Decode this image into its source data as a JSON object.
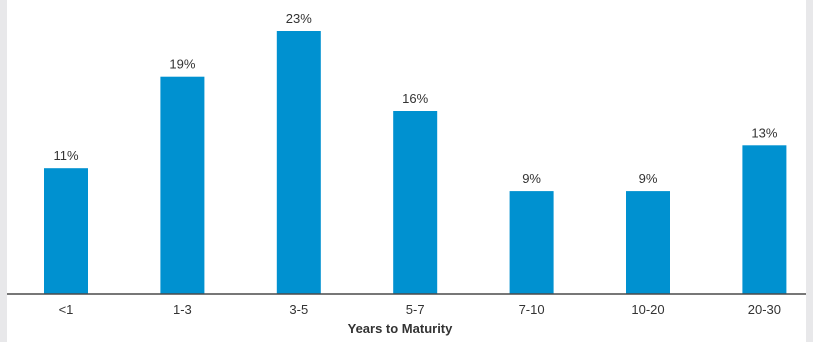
{
  "chart_data": {
    "type": "bar",
    "title": "",
    "xlabel": "Years to Maturity",
    "ylabel": "",
    "categories": [
      "<1",
      "1-3",
      "3-5",
      "5-7",
      "7-10",
      "10-20",
      "20-30"
    ],
    "values": [
      11,
      19,
      23,
      16,
      9,
      9,
      13
    ],
    "value_labels": [
      "11%",
      "19%",
      "23%",
      "16%",
      "9%",
      "9%",
      "13%"
    ],
    "ylim": [
      0,
      24
    ],
    "grid": false,
    "legend": "none",
    "bar_color": "#0091d0",
    "axis_color": "#4a4a4a",
    "background_color": "#ffffff",
    "frame_color": "#e8e8ea"
  }
}
